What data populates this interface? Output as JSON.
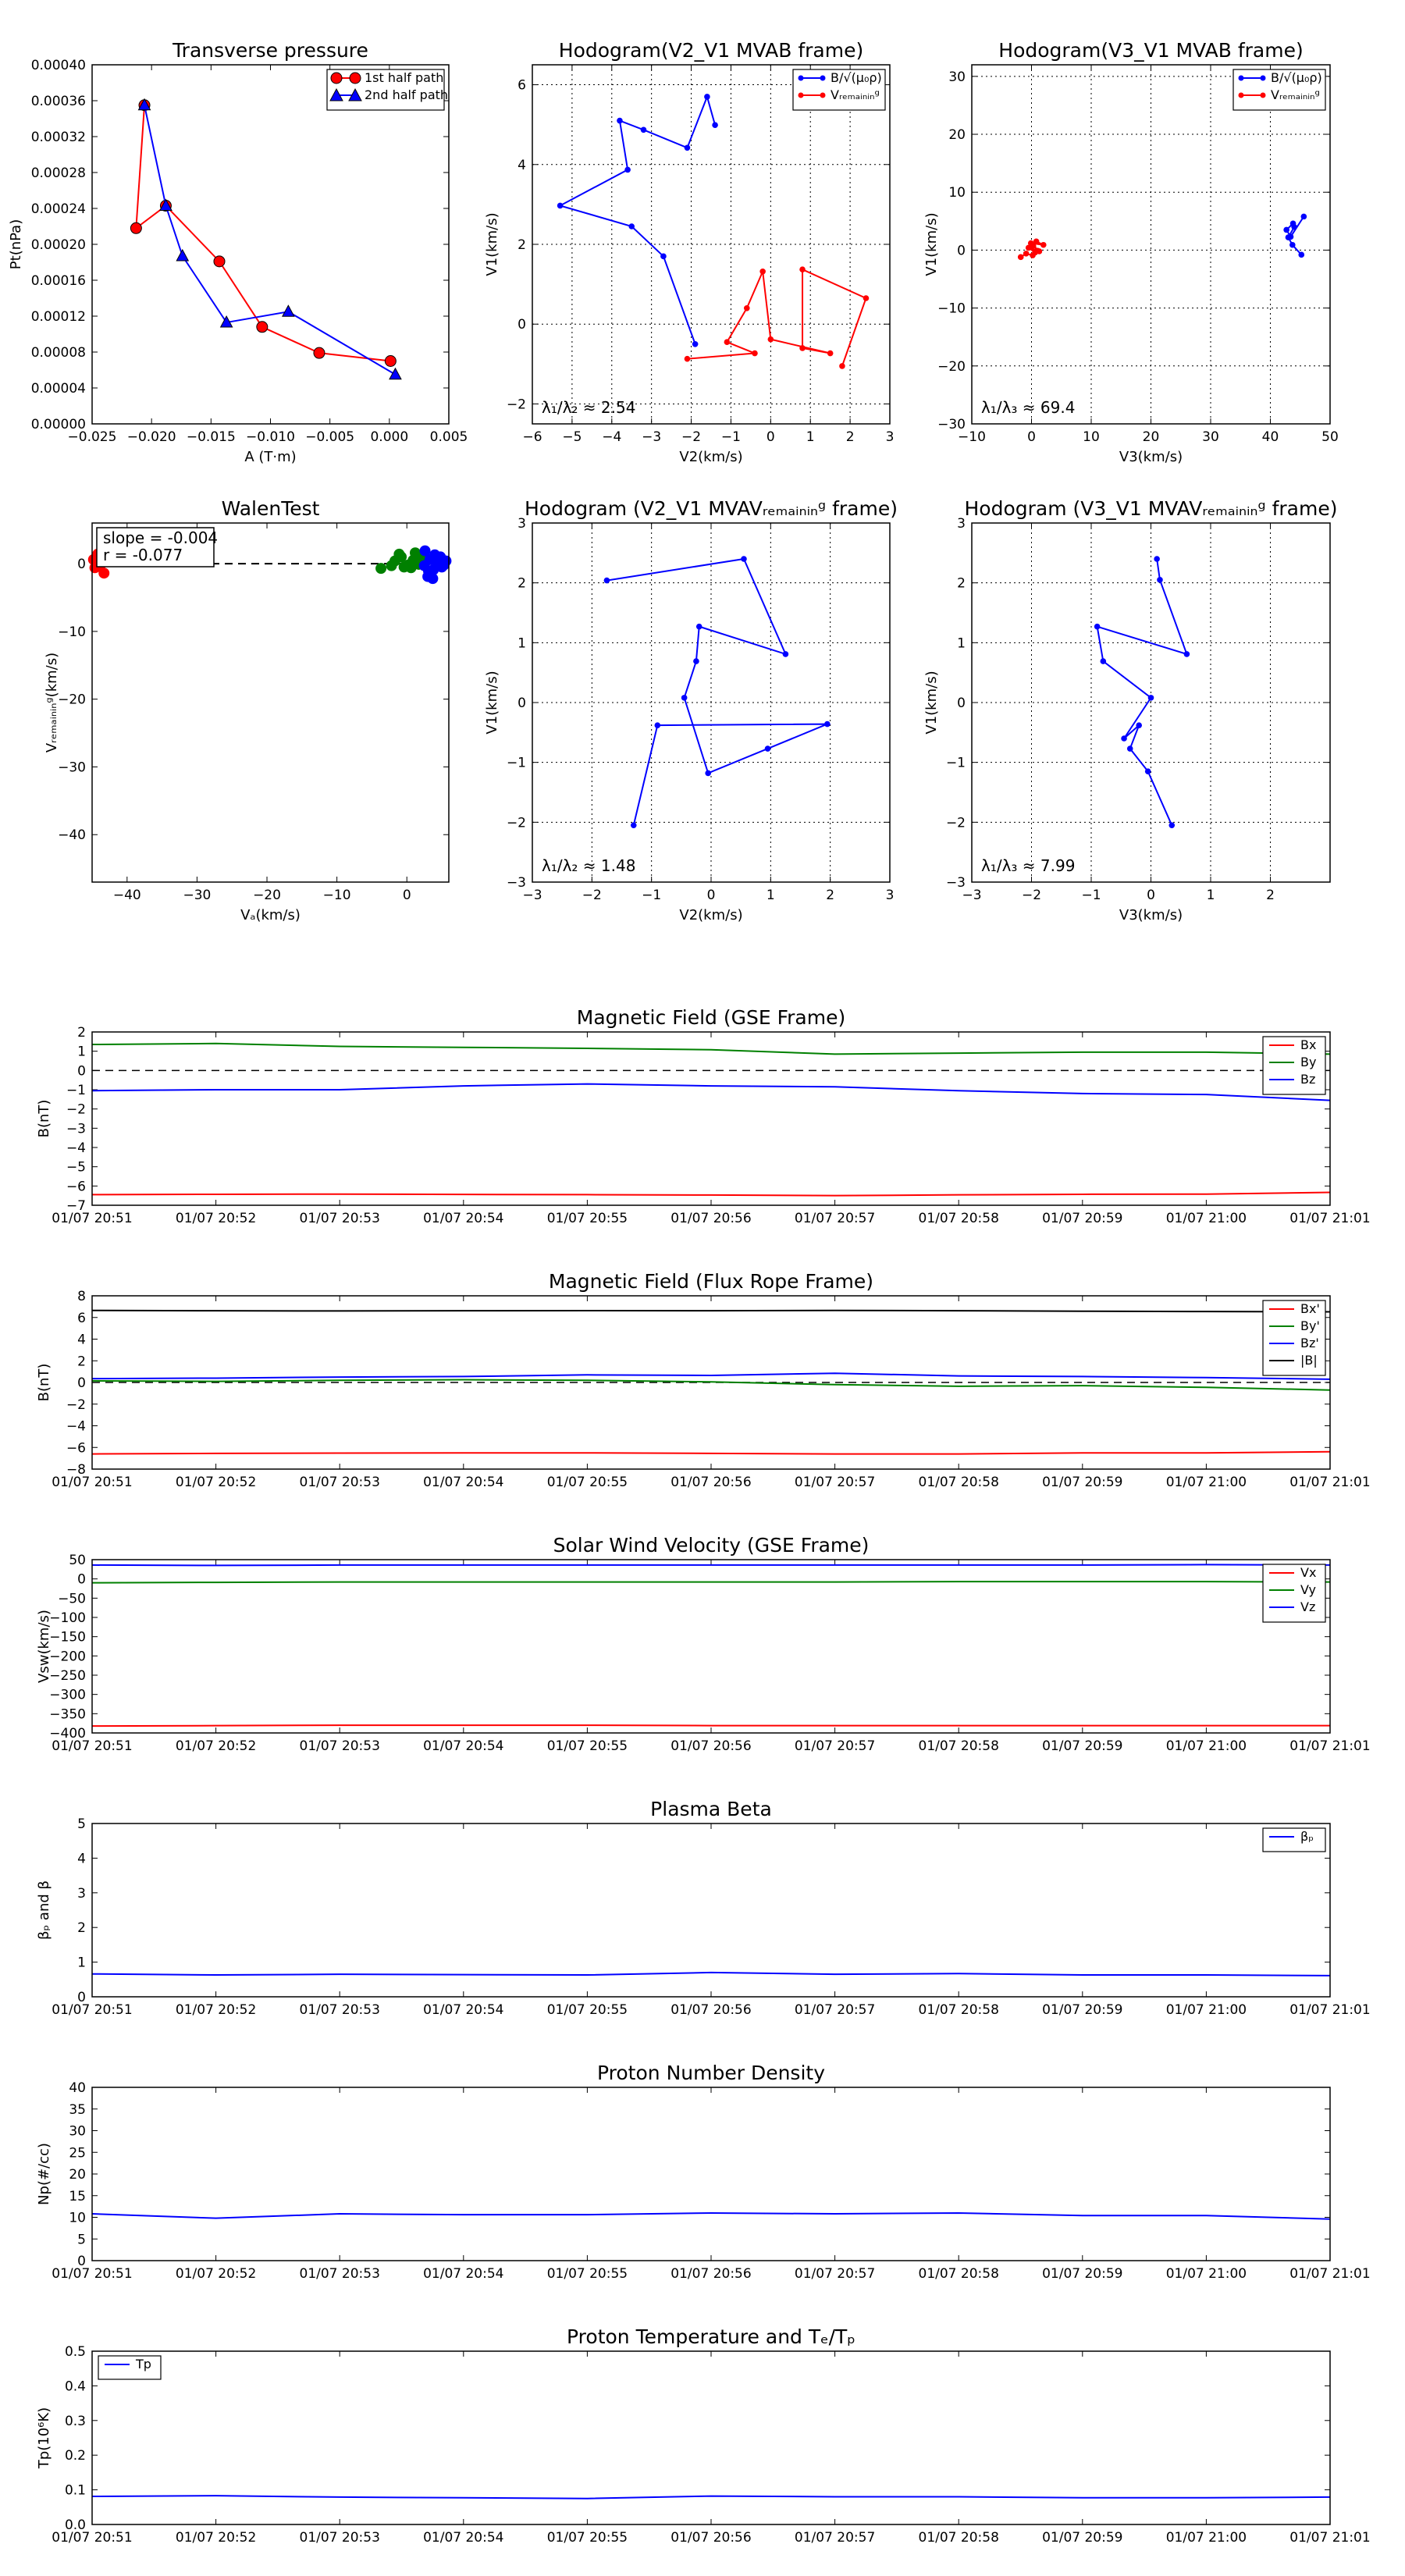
{
  "chart_data": [
    {
      "id": "tp",
      "type": "line",
      "title": "Transverse pressure",
      "xlabel": "A (T·m)",
      "ylabel": "Pt(nPa)",
      "xlim": [
        -0.025,
        0.005
      ],
      "ylim": [
        0,
        0.0004
      ],
      "xticks": [
        -0.025,
        -0.02,
        -0.015,
        -0.01,
        -0.005,
        0.0,
        0.005
      ],
      "xtick_labels": [
        "−0.025",
        "−0.020",
        "−0.015",
        "−0.010",
        "−0.005",
        "0.000",
        "0.005"
      ],
      "yticks": [
        0,
        4e-05,
        8e-05,
        0.00012,
        0.00016,
        0.0002,
        0.00024,
        0.00028,
        0.00032,
        0.00036,
        0.0004
      ],
      "ytick_labels": [
        "0.00000",
        "0.00004",
        "0.00008",
        "0.00012",
        "0.00016",
        "0.00020",
        "0.00024",
        "0.00028",
        "0.00032",
        "0.00036",
        "0.00040"
      ],
      "grid": false,
      "legend_loc": "top-right",
      "series": [
        {
          "name": "1st half path",
          "color": "#ff0000",
          "marker": "circle",
          "x": [
            -0.0206,
            -0.0213,
            -0.0188,
            -0.0143,
            -0.0107,
            -0.0059,
            0.0001
          ],
          "y": [
            0.000355,
            0.000218,
            0.000243,
            0.000181,
            0.000108,
            7.9e-05,
            7e-05
          ]
        },
        {
          "name": "2nd half path",
          "color": "#0000ff",
          "marker": "triangle",
          "x": [
            -0.0206,
            -0.0188,
            -0.0174,
            -0.0137,
            -0.0085,
            0.0005
          ],
          "y": [
            0.000355,
            0.000243,
            0.000187,
            0.000113,
            0.000125,
            5.5e-05
          ]
        }
      ]
    },
    {
      "id": "h2",
      "type": "line",
      "title": "Hodogram(V2_V1 MVAB frame)",
      "xlabel": "V2(km/s)",
      "ylabel": "V1(km/s)",
      "xlim": [
        -6,
        3
      ],
      "ylim": [
        -2.5,
        6.5
      ],
      "xticks": [
        -6,
        -5,
        -4,
        -3,
        -2,
        -1,
        0,
        1,
        2,
        3
      ],
      "xtick_labels": [
        "−6",
        "−5",
        "−4",
        "−3",
        "−2",
        "−1",
        "0",
        "1",
        "2",
        "3"
      ],
      "yticks": [
        -2,
        0,
        2,
        4,
        6
      ],
      "ytick_labels": [
        "−2",
        "0",
        "2",
        "4",
        "6"
      ],
      "grid": true,
      "legend_loc": "top-right",
      "annotation": "λ₁/λ₂ ≈ 2.54",
      "series": [
        {
          "name": "B/√(μ₀ρ)",
          "color": "#0000ff",
          "marker": "dot",
          "x": [
            -1.9,
            -2.7,
            -3.5,
            -5.3,
            -3.6,
            -3.8,
            -3.2,
            -2.1,
            -1.6,
            -1.4
          ],
          "y": [
            -0.5,
            1.7,
            2.45,
            2.97,
            3.87,
            5.1,
            4.87,
            4.42,
            5.7,
            4.99
          ]
        },
        {
          "name": "Vᵣₑₘₐᵢₙᵢₙᵍ",
          "color": "#ff0000",
          "marker": "dot",
          "x": [
            -2.1,
            -0.4,
            -1.1,
            -0.6,
            -0.2,
            0.0,
            1.5,
            0.8,
            0.8,
            2.4,
            1.8
          ],
          "y": [
            -0.87,
            -0.73,
            -0.45,
            0.4,
            1.32,
            -0.38,
            -0.73,
            -0.6,
            1.37,
            0.65,
            -1.05
          ]
        }
      ]
    },
    {
      "id": "h3",
      "type": "line",
      "title": "Hodogram(V3_V1 MVAB frame)",
      "xlabel": "V3(km/s)",
      "ylabel": "V1(km/s)",
      "xlim": [
        -10,
        50
      ],
      "ylim": [
        -30,
        32
      ],
      "xticks": [
        -10,
        0,
        10,
        20,
        30,
        40,
        50
      ],
      "xtick_labels": [
        "−10",
        "0",
        "10",
        "20",
        "30",
        "40",
        "50"
      ],
      "yticks": [
        -30,
        -20,
        -10,
        0,
        10,
        20,
        30
      ],
      "ytick_labels": [
        "−30",
        "−20",
        "−10",
        "0",
        "10",
        "20",
        "30"
      ],
      "grid": true,
      "legend_loc": "top-right",
      "annotation": "λ₁/λ₃ ≈ 69.4",
      "series": [
        {
          "name": "B/√(μ₀ρ)",
          "color": "#0000ff",
          "marker": "dot",
          "x": [
            45.2,
            43.7,
            43.0,
            44.0,
            43.8,
            42.7,
            43.4,
            45.6
          ],
          "y": [
            -0.8,
            0.9,
            2.2,
            4.0,
            4.6,
            3.5,
            2.3,
            5.8
          ]
        },
        {
          "name": "Vᵣₑₘₐᵢₙᵢₙᵍ",
          "color": "#ff0000",
          "marker": "dot",
          "x": [
            -1.8,
            -0.9,
            0.2,
            0.6,
            -0.5,
            1.0,
            0.3,
            1.3,
            -0.1,
            2.0,
            0.8
          ],
          "y": [
            -1.2,
            -0.6,
            -0.9,
            -0.4,
            0.4,
            -0.1,
            0.7,
            -0.2,
            1.2,
            0.9,
            1.5
          ]
        }
      ]
    },
    {
      "id": "walen",
      "type": "scatter",
      "title": "WalenTest",
      "xlabel": "Vₐ(km/s)",
      "ylabel": "Vᵣₑₘₐᵢₙᵢₙᵍ(km/s)",
      "xlim": [
        -45,
        6
      ],
      "ylim": [
        -47,
        6
      ],
      "xticks": [
        -40,
        -30,
        -20,
        -10,
        0
      ],
      "xtick_labels": [
        "−40",
        "−30",
        "−20",
        "−10",
        "0"
      ],
      "yticks": [
        -40,
        -30,
        -20,
        -10,
        0
      ],
      "ytick_labels": [
        "−40",
        "−30",
        "−20",
        "−10",
        "0"
      ],
      "grid": false,
      "annotation_lines": [
        "slope = -0.004",
        "r = -0.077"
      ],
      "series": [
        {
          "color": "#ff0000",
          "x": [
            -44.8,
            -43.9,
            -43.3,
            -44.2,
            -43.6,
            -44.6
          ],
          "y": [
            0.6,
            -0.4,
            -1.4,
            1.4,
            0.1,
            -0.6
          ]
        },
        {
          "color": "#008000",
          "x": [
            -3.7,
            -2.2,
            -1.7,
            -1.1,
            -0.4,
            0.2,
            0.9,
            1.2,
            1.7,
            2.2,
            -0.8,
            0.6
          ],
          "y": [
            -0.7,
            -0.3,
            0.4,
            1.4,
            -0.5,
            -0.2,
            0.5,
            1.6,
            -0.1,
            0.7,
            1.0,
            -0.6
          ]
        },
        {
          "color": "#0000ff",
          "x": [
            2.5,
            3.3,
            3.8,
            4.4,
            4.8,
            5.0,
            3.0,
            3.7,
            4.3,
            5.3,
            2.6,
            4.0,
            5.6,
            3.1
          ],
          "y": [
            -0.3,
            0.6,
            -0.9,
            0.2,
            1.0,
            -0.5,
            -1.9,
            -2.2,
            0.8,
            -0.2,
            1.9,
            1.3,
            0.4,
            -1.1
          ]
        }
      ],
      "dashed_line_y": 0
    },
    {
      "id": "h4",
      "type": "line",
      "title": "Hodogram (V2_V1 MVAVᵣₑₘₐᵢₙᵢₙᵍ frame)",
      "xlabel": "V2(km/s)",
      "ylabel": "V1(km/s)",
      "xlim": [
        -3,
        3
      ],
      "ylim": [
        -3,
        3
      ],
      "xticks": [
        -3,
        -2,
        -1,
        0,
        1,
        2,
        3
      ],
      "xtick_labels": [
        "−3",
        "−2",
        "−1",
        "0",
        "1",
        "2",
        "3"
      ],
      "yticks": [
        -3,
        -2,
        -1,
        0,
        1,
        2,
        3
      ],
      "ytick_labels": [
        "−3",
        "−2",
        "−1",
        "0",
        "1",
        "2",
        "3"
      ],
      "grid": true,
      "annotation": "λ₁/λ₂ ≈ 1.48",
      "series": [
        {
          "color": "#0000ff",
          "marker": "dot",
          "x": [
            -1.3,
            -0.9,
            1.95,
            0.95,
            -0.05,
            -0.45,
            -0.25,
            -0.2,
            1.25,
            0.55,
            -1.75
          ],
          "y": [
            -2.05,
            -0.38,
            -0.36,
            -0.77,
            -1.18,
            0.08,
            0.69,
            1.27,
            0.81,
            2.4,
            2.04
          ]
        }
      ]
    },
    {
      "id": "h5",
      "type": "line",
      "title": "Hodogram (V3_V1 MVAVᵣₑₘₐᵢₙᵢₙᵍ frame)",
      "xlabel": "V3(km/s)",
      "ylabel": "V1(km/s)",
      "xlim": [
        -3,
        3
      ],
      "ylim": [
        -3,
        3
      ],
      "xticks": [
        -3,
        -2,
        -1,
        0,
        1,
        2
      ],
      "xtick_labels": [
        "−3",
        "−2",
        "−1",
        "0",
        "1",
        "2"
      ],
      "yticks": [
        -3,
        -2,
        -1,
        0,
        1,
        2,
        3
      ],
      "ytick_labels": [
        "−3",
        "−2",
        "−1",
        "0",
        "1",
        "2",
        "3"
      ],
      "grid": true,
      "annotation": "λ₁/λ₃ ≈ 7.99",
      "series": [
        {
          "color": "#0000ff",
          "marker": "dot",
          "x": [
            0.35,
            -0.05,
            -0.35,
            -0.2,
            -0.45,
            0.0,
            -0.8,
            -0.9,
            0.6,
            0.15,
            0.1
          ],
          "y": [
            -2.05,
            -1.15,
            -0.77,
            -0.38,
            -0.6,
            0.08,
            0.69,
            1.27,
            0.81,
            2.05,
            2.4
          ]
        }
      ]
    },
    {
      "id": "bgse",
      "type": "line",
      "title": "Magnetic Field (GSE Frame)",
      "ylabel": "B(nT)",
      "x": [
        "01/07 20:51",
        "01/07 20:52",
        "01/07 20:53",
        "01/07 20:54",
        "01/07 20:55",
        "01/07 20:56",
        "01/07 20:57",
        "01/07 20:58",
        "01/07 20:59",
        "01/07 21:00",
        "01/07 21:01"
      ],
      "ylim": [
        -7,
        2
      ],
      "yticks": [
        -7,
        -6,
        -5,
        -4,
        -3,
        -2,
        -1,
        0,
        1,
        2
      ],
      "ytick_labels": [
        "−7",
        "−6",
        "−5",
        "−4",
        "−3",
        "−2",
        "−1",
        "0",
        "1",
        "2"
      ],
      "grid": false,
      "legend_loc": "top-right",
      "dashed_line_y": 0,
      "series": [
        {
          "name": "Bx",
          "color": "#ff0000",
          "values": [
            -6.45,
            -6.43,
            -6.42,
            -6.44,
            -6.45,
            -6.47,
            -6.5,
            -6.46,
            -6.43,
            -6.42,
            -6.33
          ]
        },
        {
          "name": "By",
          "color": "#008000",
          "values": [
            1.35,
            1.4,
            1.25,
            1.2,
            1.15,
            1.08,
            0.85,
            0.9,
            0.95,
            0.95,
            0.85
          ]
        },
        {
          "name": "Bz",
          "color": "#0000ff",
          "values": [
            -1.05,
            -1.0,
            -1.0,
            -0.8,
            -0.7,
            -0.8,
            -0.85,
            -1.05,
            -1.2,
            -1.25,
            -1.55
          ]
        }
      ]
    },
    {
      "id": "bfr",
      "type": "line",
      "title": "Magnetic Field (Flux Rope Frame)",
      "ylabel": "B(nT)",
      "x": [
        "01/07 20:51",
        "01/07 20:52",
        "01/07 20:53",
        "01/07 20:54",
        "01/07 20:55",
        "01/07 20:56",
        "01/07 20:57",
        "01/07 20:58",
        "01/07 20:59",
        "01/07 21:00",
        "01/07 21:01"
      ],
      "ylim": [
        -8,
        8
      ],
      "yticks": [
        -8,
        -6,
        -4,
        -2,
        0,
        2,
        4,
        6,
        8
      ],
      "ytick_labels": [
        "−8",
        "−6",
        "−4",
        "−2",
        "0",
        "2",
        "4",
        "6",
        "8"
      ],
      "grid": false,
      "legend_loc": "top-right",
      "dashed_line_y": 0,
      "series": [
        {
          "name": "Bx'",
          "color": "#ff0000",
          "values": [
            -6.6,
            -6.55,
            -6.52,
            -6.5,
            -6.5,
            -6.55,
            -6.6,
            -6.6,
            -6.5,
            -6.5,
            -6.4
          ]
        },
        {
          "name": "By'",
          "color": "#008000",
          "values": [
            0.15,
            0.1,
            0.2,
            0.25,
            0.2,
            0.05,
            -0.2,
            -0.35,
            -0.3,
            -0.45,
            -0.7
          ]
        },
        {
          "name": "Bz'",
          "color": "#0000ff",
          "values": [
            0.35,
            0.4,
            0.5,
            0.55,
            0.7,
            0.65,
            0.85,
            0.6,
            0.55,
            0.45,
            0.3
          ]
        },
        {
          "name": "|B|",
          "color": "#000000",
          "values": [
            6.65,
            6.62,
            6.6,
            6.62,
            6.63,
            6.62,
            6.65,
            6.62,
            6.58,
            6.55,
            6.52
          ]
        }
      ]
    },
    {
      "id": "vsw",
      "type": "line",
      "title": "Solar Wind Velocity (GSE Frame)",
      "ylabel": "Vsw(km/s)",
      "x": [
        "01/07 20:51",
        "01/07 20:52",
        "01/07 20:53",
        "01/07 20:54",
        "01/07 20:55",
        "01/07 20:56",
        "01/07 20:57",
        "01/07 20:58",
        "01/07 20:59",
        "01/07 21:00",
        "01/07 21:01"
      ],
      "ylim": [
        -400,
        50
      ],
      "yticks": [
        -400,
        -350,
        -300,
        -250,
        -200,
        -150,
        -100,
        -50,
        0,
        50
      ],
      "ytick_labels": [
        "−400",
        "−350",
        "−300",
        "−250",
        "−200",
        "−150",
        "−100",
        "−50",
        "0",
        "50"
      ],
      "grid": false,
      "legend_loc": "top-right",
      "series": [
        {
          "name": "Vx",
          "color": "#ff0000",
          "values": [
            -382,
            -381,
            -380,
            -380,
            -380,
            -381,
            -381,
            -381,
            -381,
            -381,
            -381
          ]
        },
        {
          "name": "Vy",
          "color": "#008000",
          "values": [
            -10,
            -9,
            -8,
            -8,
            -8,
            -8,
            -8,
            -7,
            -7,
            -7,
            -8
          ]
        },
        {
          "name": "Vz",
          "color": "#0000ff",
          "values": [
            36,
            35,
            36,
            36,
            36,
            36,
            36,
            36,
            36,
            37,
            36
          ]
        }
      ]
    },
    {
      "id": "beta",
      "type": "line",
      "title": "Plasma Beta",
      "ylabel": "βₚ and β",
      "x": [
        "01/07 20:51",
        "01/07 20:52",
        "01/07 20:53",
        "01/07 20:54",
        "01/07 20:55",
        "01/07 20:56",
        "01/07 20:57",
        "01/07 20:58",
        "01/07 20:59",
        "01/07 21:00",
        "01/07 21:01"
      ],
      "ylim": [
        0,
        5
      ],
      "yticks": [
        0,
        1,
        2,
        3,
        4,
        5
      ],
      "ytick_labels": [
        "0",
        "1",
        "2",
        "3",
        "4",
        "5"
      ],
      "grid": false,
      "legend_loc": "top-right",
      "series": [
        {
          "name": "βₚ",
          "color": "#0000ff",
          "values": [
            0.66,
            0.63,
            0.65,
            0.64,
            0.63,
            0.7,
            0.65,
            0.67,
            0.63,
            0.63,
            0.61
          ]
        }
      ]
    },
    {
      "id": "np",
      "type": "line",
      "title": "Proton Number Density",
      "ylabel": "Np(#/cc)",
      "x": [
        "01/07 20:51",
        "01/07 20:52",
        "01/07 20:53",
        "01/07 20:54",
        "01/07 20:55",
        "01/07 20:56",
        "01/07 20:57",
        "01/07 20:58",
        "01/07 20:59",
        "01/07 21:00",
        "01/07 21:01"
      ],
      "ylim": [
        0,
        40
      ],
      "yticks": [
        0,
        5,
        10,
        15,
        20,
        25,
        30,
        35,
        40
      ],
      "ytick_labels": [
        "0",
        "5",
        "10",
        "15",
        "20",
        "25",
        "30",
        "35",
        "40"
      ],
      "grid": false,
      "series": [
        {
          "color": "#0000ff",
          "values": [
            10.8,
            9.8,
            10.8,
            10.6,
            10.6,
            11.0,
            10.8,
            11.0,
            10.4,
            10.4,
            9.6
          ]
        }
      ]
    },
    {
      "id": "tp2",
      "type": "line",
      "title": "Proton Temperature and Tₑ/Tₚ",
      "ylabel": "Tp(10⁶K)",
      "x": [
        "01/07 20:51",
        "01/07 20:52",
        "01/07 20:53",
        "01/07 20:54",
        "01/07 20:55",
        "01/07 20:56",
        "01/07 20:57",
        "01/07 20:58",
        "01/07 20:59",
        "01/07 21:00",
        "01/07 21:01"
      ],
      "ylim": [
        0,
        0.5
      ],
      "yticks": [
        0,
        0.1,
        0.2,
        0.3,
        0.4,
        0.5
      ],
      "ytick_labels": [
        "0.0",
        "0.1",
        "0.2",
        "0.3",
        "0.4",
        "0.5"
      ],
      "grid": false,
      "legend_loc": "top-left",
      "series": [
        {
          "name": "Tp",
          "color": "#0000ff",
          "values": [
            0.081,
            0.083,
            0.079,
            0.077,
            0.075,
            0.082,
            0.08,
            0.08,
            0.077,
            0.077,
            0.079
          ]
        }
      ]
    }
  ]
}
